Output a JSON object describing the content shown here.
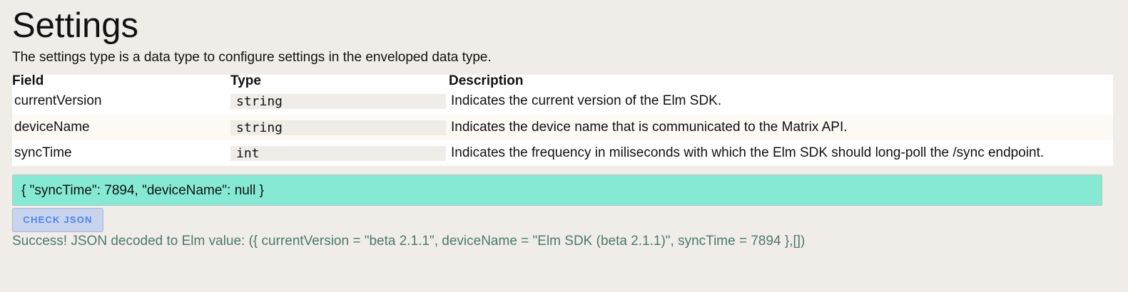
{
  "title": "Settings",
  "intro": "The settings type is a data type to configure settings in the enveloped data type.",
  "table": {
    "headers": [
      "Field",
      "Type",
      "Description"
    ],
    "rows": [
      {
        "field": "currentVersion",
        "type": "string",
        "description": "Indicates the current version of the Elm SDK."
      },
      {
        "field": "deviceName",
        "type": "string",
        "description": "Indicates the device name that is communicated to the Matrix API."
      },
      {
        "field": "syncTime",
        "type": "int",
        "description": "Indicates the frequency in miliseconds with which the Elm SDK should long-poll the /sync endpoint."
      }
    ]
  },
  "json_input": {
    "value": "{ \"syncTime\": 7894, \"deviceName\": null }"
  },
  "check_button": "CHECK JSON",
  "result": "Success! JSON decoded to Elm value: ({ currentVersion = \"beta 2.1.1\", deviceName = \"Elm SDK (beta 2.1.1)\", syncTime = 7894 },[])",
  "colors": {
    "input_bg": "#86e9d3",
    "button_bg": "#c8d3ed",
    "button_text": "#4a86ef",
    "result_text": "#4c7a6c"
  }
}
